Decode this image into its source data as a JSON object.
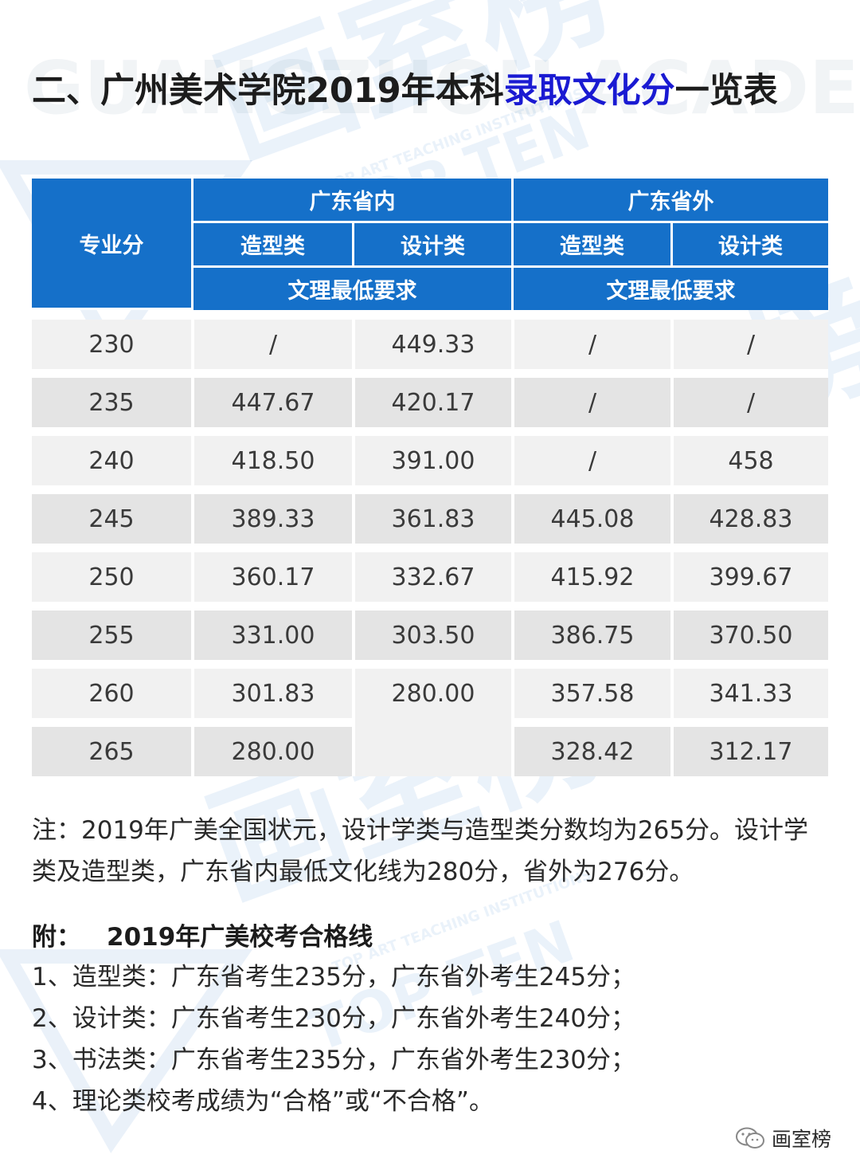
{
  "title": {
    "prefix": "二、广州美术学院2019年本科",
    "highlight": "录取文化分",
    "suffix": "一览表"
  },
  "table": {
    "header": {
      "score_col": "专业分",
      "in_province": "广东省内",
      "out_province": "广东省外",
      "in_shaping": "造型类",
      "in_design": "设计类",
      "out_shaping": "造型类",
      "out_design": "设计类",
      "in_requirement": "文理最低要求",
      "out_requirement": "文理最低要求"
    },
    "rows": [
      [
        "230",
        "/",
        "449.33",
        "/",
        "/"
      ],
      [
        "235",
        "447.67",
        "420.17",
        "/",
        "/"
      ],
      [
        "240",
        "418.50",
        "391.00",
        "/",
        "458"
      ],
      [
        "245",
        "389.33",
        "361.83",
        "445.08",
        "428.83"
      ],
      [
        "250",
        "360.17",
        "332.67",
        "415.92",
        "399.67"
      ],
      [
        "255",
        "331.00",
        "303.50",
        "386.75",
        "370.50"
      ],
      [
        "260",
        "301.83",
        "280.00",
        "357.58",
        "341.33"
      ],
      [
        "265",
        "280.00",
        "",
        "328.42",
        "312.17"
      ]
    ]
  },
  "note": "注：2019年广美全国状元，设计学类与造型类分数均为265分。设计学类及造型类，广东省内最低文化线为280分，省外为276分。",
  "appendix": {
    "label": "附：",
    "title": "2019年广美校考合格线",
    "items": [
      "1、造型类：广东省考生235分，广东省外考生245分；",
      "2、设计类：广东省考生230分，广东省外考生240分；",
      "3、书法类：广东省考生235分，广东省外考生230分；",
      "4、理论类校考成绩为“合格”或“不合格”。"
    ]
  },
  "brand": {
    "name": "画室榜",
    "icon": "wechat-icon"
  },
  "watermark": {
    "text_top": "GUANGZHOU ACADEMY",
    "text_brand": "画室榜",
    "text_sub": "TOP TEN",
    "text_small": "TOP ART TEACHING INSTITUTIONS"
  },
  "colors": {
    "header_blue": "#1570c9",
    "title_highlight": "#1a1ad2",
    "row_light": "#f1f1f1",
    "row_dark": "#e4e4e4"
  }
}
